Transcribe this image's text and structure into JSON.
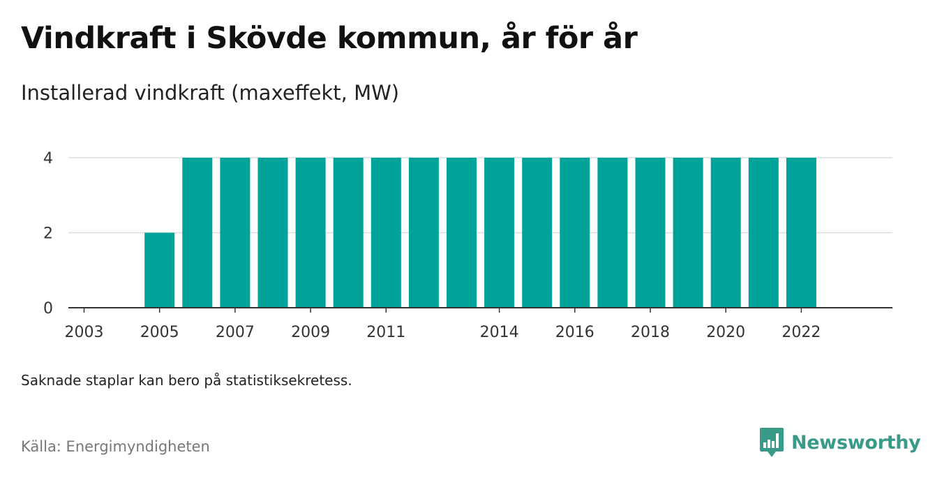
{
  "header": {
    "title": "Vindkraft i Skövde kommun, år för år",
    "subtitle": "Installerad vindkraft (maxeffekt, MW)"
  },
  "chart_data": {
    "type": "bar",
    "categories": [
      "2003",
      "2004",
      "2005",
      "2006",
      "2007",
      "2008",
      "2009",
      "2010",
      "2011",
      "2012",
      "2013",
      "2014",
      "2015",
      "2016",
      "2017",
      "2018",
      "2019",
      "2020",
      "2021",
      "2022"
    ],
    "values": [
      0,
      0,
      2,
      4,
      4,
      4,
      4,
      4,
      4,
      4,
      4,
      4,
      4,
      4,
      4,
      4,
      4,
      4,
      4,
      4
    ],
    "x_tick_labels": [
      "2003",
      "2005",
      "2007",
      "2009",
      "2011",
      "2014",
      "2016",
      "2018",
      "2020",
      "2022"
    ],
    "y_ticks": [
      0,
      2,
      4
    ],
    "ylim": [
      0,
      4
    ],
    "grid": true,
    "bar_color": "#00a39a",
    "axis_color": "#333333",
    "grid_color": "#dddddd"
  },
  "footer": {
    "note": "Saknade staplar kan bero på statistiksekretess.",
    "source": "Källa: Energimyndigheten",
    "brand": "Newsworthy",
    "brand_color": "#3a9a8a"
  }
}
